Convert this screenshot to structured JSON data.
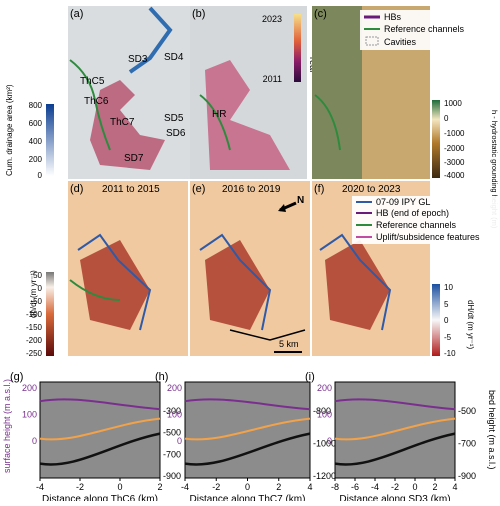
{
  "panel_letters": [
    "(a)",
    "(b)",
    "(c)",
    "(d)",
    "(e)",
    "(f)",
    "(g)",
    "(h)",
    "(i)"
  ],
  "map_labels": {
    "a": [
      "SD3",
      "SD4",
      "ThC5",
      "ThC6",
      "ThC7",
      "SD5",
      "SD6",
      "SD7"
    ],
    "b": [
      "HR"
    ]
  },
  "colorbars": {
    "drainage": {
      "title": "Cum. drainage area (km²)",
      "ticks": [
        "800",
        "600",
        "400",
        "200",
        "0"
      ]
    },
    "year": {
      "title": "Year",
      "ticks": [
        "2023",
        "2011"
      ]
    },
    "grounding": {
      "title": "h - hydrostatic grounding height (m)",
      "ticks": [
        "1000",
        "0",
        "-1000",
        "-2000",
        "-3000",
        "-4000"
      ]
    },
    "dhdt_left": {
      "title": "dh/dt (m yr⁻¹)",
      "ticks": [
        "50",
        "0",
        "-50",
        "-100",
        "-150",
        "-200",
        "-250"
      ]
    },
    "dhdt_right": {
      "title": "dH/dt (m yr⁻¹)",
      "ticks": [
        "10",
        "5",
        "0",
        "-5",
        "-10"
      ]
    }
  },
  "legend_top": [
    "HBs",
    "Reference channels",
    "Cavities"
  ],
  "legend_mid": [
    "07-09 IPY GL",
    "HB (end of epoch)",
    "Reference channels",
    "Uplift/subsidence features"
  ],
  "epochs": [
    "2011 to 2015",
    "2016 to 2019",
    "2020 to 2023"
  ],
  "north": "N",
  "scalebar": "5 km",
  "colors": {
    "hb": "#6a1b7a",
    "ref": "#2e8b3e",
    "gl": "#2f5aa8",
    "uplift": "#c24aa0",
    "surface": "#7a2f8f",
    "bed": "#111111"
  },
  "chart_data": [
    {
      "type": "line",
      "panel": "(g)",
      "xlabel": "Distance along ThC6 (km)",
      "x_ticks": [
        "-4",
        "-2",
        "0",
        "2"
      ],
      "left_axis": {
        "label": "surface height (m a.s.l.)",
        "ticks": [
          "200",
          "100",
          "0"
        ]
      },
      "right_axis": {
        "label": "",
        "ticks": [
          "-300",
          "-500",
          "-700",
          "-900"
        ]
      }
    },
    {
      "type": "line",
      "panel": "(h)",
      "xlabel": "Distance along ThC7 (km)",
      "x_ticks": [
        "-4",
        "-2",
        "0",
        "2",
        "4"
      ],
      "left_axis": {
        "label": "",
        "ticks": [
          "200",
          "100",
          "0"
        ]
      },
      "right_axis": {
        "label": "",
        "ticks": [
          "-800",
          "-1000",
          "-1200"
        ]
      }
    },
    {
      "type": "line",
      "panel": "(i)",
      "xlabel": "Distance along SD3 (km)",
      "x_ticks": [
        "-8",
        "-6",
        "-4",
        "-2",
        "0",
        "2",
        "4"
      ],
      "left_axis": {
        "label": "",
        "ticks": [
          "200",
          "100",
          "0"
        ]
      },
      "right_axis": {
        "label": "bed height (m a.s.l.)",
        "ticks": [
          "-500",
          "-700",
          "-900"
        ]
      }
    }
  ]
}
